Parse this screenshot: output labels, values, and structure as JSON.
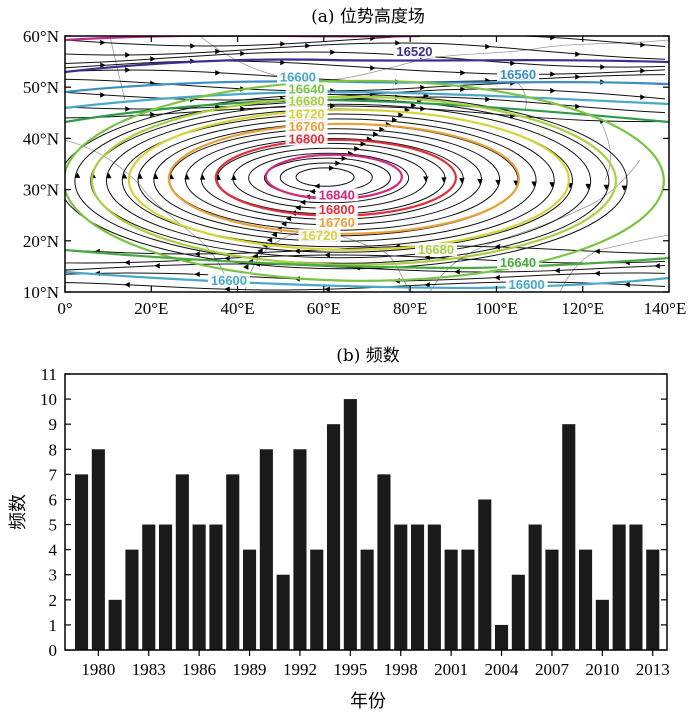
{
  "chart_data": [
    {
      "panel": "a",
      "type": "contour-streamline-map",
      "title": "(a) 位势高度场",
      "x_ticks": [
        "0°",
        "20°E",
        "40°E",
        "60°E",
        "80°E",
        "100°E",
        "120°E",
        "140°E"
      ],
      "y_ticks": [
        "10°N",
        "20°N",
        "30°N",
        "40°N",
        "50°N",
        "60°N"
      ],
      "xlim": [
        0,
        140
      ],
      "ylim": [
        10,
        60
      ],
      "contour_labels": [
        {
          "text": "16520",
          "lon": 81,
          "lat": 56.5,
          "color": "#3a2f8f"
        },
        {
          "text": "16560",
          "lon": 105,
          "lat": 52,
          "color": "#3a8fc0"
        },
        {
          "text": "16600",
          "lon": 54,
          "lat": 51.5,
          "color": "#4aa8c8"
        },
        {
          "text": "16640",
          "lon": 56,
          "lat": 49.2,
          "color": "#7ac443"
        },
        {
          "text": "16680",
          "lon": 56,
          "lat": 46.8,
          "color": "#a8d040"
        },
        {
          "text": "16720",
          "lon": 56,
          "lat": 44.3,
          "color": "#d4d43a"
        },
        {
          "text": "16760",
          "lon": 56,
          "lat": 41.8,
          "color": "#e8a03a"
        },
        {
          "text": "16800",
          "lon": 56,
          "lat": 39.4,
          "color": "#e0303a"
        },
        {
          "text": "16840",
          "lon": 63,
          "lat": 28.5,
          "color": "#d02a80"
        },
        {
          "text": "16800",
          "lon": 63,
          "lat": 25.6,
          "color": "#e0303a"
        },
        {
          "text": "16760",
          "lon": 63,
          "lat": 23.1,
          "color": "#e8a03a"
        },
        {
          "text": "16720",
          "lon": 59,
          "lat": 20.5,
          "color": "#d4d43a"
        },
        {
          "text": "16680",
          "lon": 86,
          "lat": 17.8,
          "color": "#a8d040"
        },
        {
          "text": "16640",
          "lon": 105,
          "lat": 15.3,
          "color": "#4aaa40"
        },
        {
          "text": "16600",
          "lon": 38,
          "lat": 11.8,
          "color": "#4aa8c8"
        },
        {
          "text": "16600",
          "lon": 107,
          "lat": 11.0,
          "color": "#4aa8c8"
        }
      ]
    },
    {
      "panel": "b",
      "type": "bar",
      "title": "(b) 频数",
      "xlabel": "年份",
      "ylabel": "频数",
      "ylim": [
        0,
        11
      ],
      "y_ticks": [
        0,
        1,
        2,
        3,
        4,
        5,
        6,
        7,
        8,
        9,
        10,
        11
      ],
      "x_tick_labels": [
        "1980",
        "1983",
        "1986",
        "1989",
        "1992",
        "1995",
        "1998",
        "2001",
        "2004",
        "2007",
        "2010",
        "2013"
      ],
      "categories": [
        1979,
        1980,
        1981,
        1982,
        1983,
        1984,
        1985,
        1986,
        1987,
        1988,
        1989,
        1990,
        1991,
        1992,
        1993,
        1994,
        1995,
        1996,
        1997,
        1998,
        1999,
        2000,
        2001,
        2002,
        2003,
        2004,
        2005,
        2006,
        2007,
        2008,
        2009,
        2010,
        2011,
        2012,
        2013
      ],
      "values": [
        7,
        8,
        2,
        4,
        5,
        5,
        7,
        5,
        5,
        7,
        4,
        8,
        3,
        8,
        4,
        9,
        10,
        4,
        7,
        5,
        5,
        5,
        4,
        4,
        6,
        1,
        3,
        5,
        4,
        9,
        4,
        2,
        5,
        5,
        4
      ],
      "bar_color": "#1a1a1a"
    }
  ]
}
